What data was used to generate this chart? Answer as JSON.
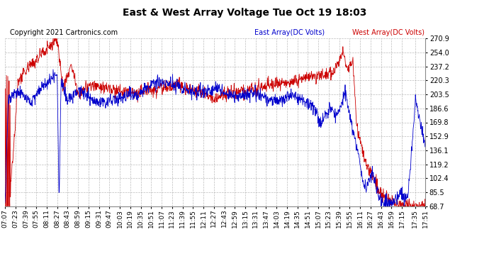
{
  "title": "East & West Array Voltage Tue Oct 19 18:03",
  "copyright": "Copyright 2021 Cartronics.com",
  "east_label": "East Array(DC Volts)",
  "west_label": "West Array(DC Volts)",
  "east_color": "#0000cc",
  "west_color": "#cc0000",
  "bg_color": "#ffffff",
  "plot_bg_color": "#ffffff",
  "grid_color": "#aaaaaa",
  "yticks": [
    68.7,
    85.5,
    102.4,
    119.2,
    136.1,
    152.9,
    169.8,
    186.6,
    203.5,
    220.3,
    237.2,
    254.0,
    270.9
  ],
  "xtick_labels": [
    "07:07",
    "07:23",
    "07:39",
    "07:55",
    "08:11",
    "08:27",
    "08:43",
    "08:59",
    "09:15",
    "09:31",
    "09:47",
    "10:03",
    "10:19",
    "10:35",
    "10:51",
    "11:07",
    "11:23",
    "11:39",
    "11:55",
    "12:11",
    "12:27",
    "12:43",
    "12:59",
    "13:15",
    "13:31",
    "13:47",
    "14:03",
    "14:19",
    "14:35",
    "14:51",
    "15:07",
    "15:23",
    "15:39",
    "15:55",
    "16:11",
    "16:27",
    "16:43",
    "16:59",
    "17:15",
    "17:35",
    "17:51"
  ],
  "ymin": 68.7,
  "ymax": 270.9,
  "title_fontsize": 10,
  "copyright_fontsize": 7,
  "tick_fontsize": 7,
  "legend_fontsize": 7
}
